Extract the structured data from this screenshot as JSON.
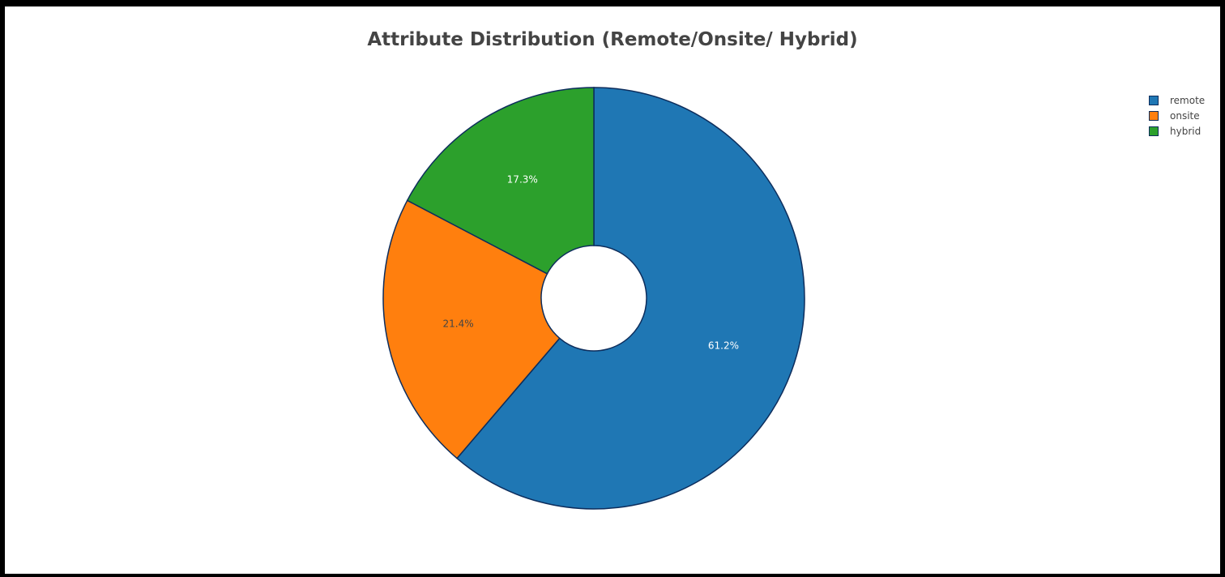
{
  "chart_data": {
    "type": "pie",
    "title": "Attribute Distribution (Remote/Onsite/ Hybrid)",
    "hole": 0.25,
    "slices": [
      {
        "label": "remote",
        "value": 61.2,
        "text": "61.2%",
        "color": "#1f77b4",
        "text_color": "#ffffff"
      },
      {
        "label": "onsite",
        "value": 21.4,
        "text": "21.4%",
        "color": "#ff7f0e",
        "text_color": "#444444"
      },
      {
        "label": "hybrid",
        "value": 17.3,
        "text": "17.3%",
        "color": "#2ca02c",
        "text_color": "#ffffff"
      }
    ],
    "legend": [
      "remote",
      "onsite",
      "hybrid"
    ],
    "legend_position": "top-right",
    "slice_border_color": "#0d2d5c"
  }
}
